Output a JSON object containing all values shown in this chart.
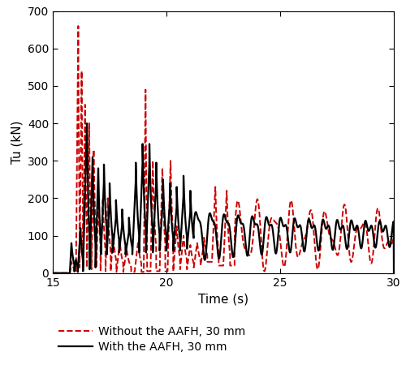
{
  "title": "",
  "xlabel": "Time (s)",
  "ylabel": "Tu (kN)",
  "xlim": [
    15,
    30
  ],
  "ylim": [
    0,
    700
  ],
  "xticks": [
    15,
    20,
    25,
    30
  ],
  "yticks": [
    0,
    100,
    200,
    300,
    400,
    500,
    600,
    700
  ],
  "legend": [
    {
      "label": "Without the AAFH, 30 mm",
      "color": "#cc0000",
      "linestyle": "--"
    },
    {
      "label": "With the AAFH, 30 mm",
      "color": "#000000",
      "linestyle": "-"
    }
  ],
  "figsize": [
    5.0,
    4.55
  ],
  "dpi": 100,
  "background_color": "#ffffff",
  "grid": false,
  "linewidth_dashed": 1.4,
  "linewidth_solid": 1.6
}
